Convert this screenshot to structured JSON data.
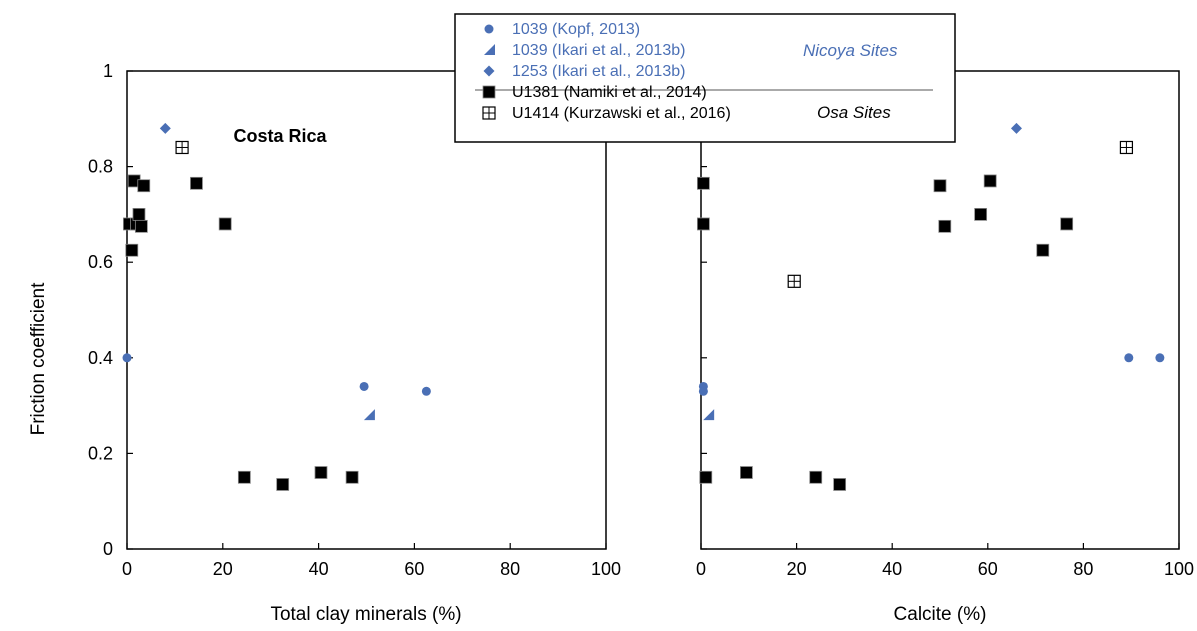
{
  "colors": {
    "nicoya": "#4a6fb5",
    "osa": "#000000",
    "axis": "#000000"
  },
  "shared": {
    "ylabel": "Friction coefficient"
  },
  "chart_data": [
    {
      "type": "scatter",
      "title": "Costa Rica",
      "xlabel": "Total clay minerals (%)",
      "ylabel": "Friction coefficient",
      "xlim": [
        0,
        100
      ],
      "ylim": [
        0,
        1
      ],
      "xticks": [
        "0",
        "20",
        "40",
        "60",
        "80",
        "100"
      ],
      "yticks": [
        "0",
        "0.2",
        "0.4",
        "0.6",
        "0.8",
        "1"
      ],
      "series": [
        {
          "name": "1039 (Kopf, 2013)",
          "marker": "circle",
          "color": "#4a6fb5",
          "points": [
            [
              0,
              0.4
            ],
            [
              49.5,
              0.34
            ],
            [
              62.5,
              0.33
            ]
          ]
        },
        {
          "name": "1039 (Ikari et al., 2013b)",
          "marker": "triangle",
          "color": "#4a6fb5",
          "points": [
            [
              50.5,
              0.28
            ]
          ]
        },
        {
          "name": "1253 (Ikari et al., 2013b)",
          "marker": "diamond",
          "color": "#4a6fb5",
          "points": [
            [
              8,
              0.88
            ]
          ]
        },
        {
          "name": "U1381 (Namiki et al., 2014)",
          "marker": "square",
          "color": "#000000",
          "points": [
            [
              0.5,
              0.68
            ],
            [
              1,
              0.625
            ],
            [
              1.5,
              0.77
            ],
            [
              2,
              0.68
            ],
            [
              2.5,
              0.7
            ],
            [
              3,
              0.675
            ],
            [
              3.5,
              0.76
            ],
            [
              14.5,
              0.765
            ],
            [
              20.5,
              0.68
            ],
            [
              24.5,
              0.15
            ],
            [
              32.5,
              0.135
            ],
            [
              40.5,
              0.16
            ],
            [
              47,
              0.15
            ]
          ]
        },
        {
          "name": "U1414 (Kurzawski et al., 2016)",
          "marker": "boxcross",
          "color": "#000000",
          "points": [
            [
              11.5,
              0.84
            ]
          ]
        }
      ]
    },
    {
      "type": "scatter",
      "title": "",
      "xlabel": "Calcite (%)",
      "ylabel": "",
      "xlim": [
        0,
        100
      ],
      "ylim": [
        0,
        1
      ],
      "xticks": [
        "0",
        "20",
        "40",
        "60",
        "80",
        "100"
      ],
      "yticks": [
        "0",
        "0.2",
        "0.4",
        "0.6",
        "0.8",
        "1"
      ],
      "series": [
        {
          "name": "1039 (Kopf, 2013)",
          "marker": "circle",
          "color": "#4a6fb5",
          "points": [
            [
              0.5,
              0.34
            ],
            [
              0.5,
              0.33
            ],
            [
              89.5,
              0.4
            ],
            [
              96,
              0.4
            ]
          ]
        },
        {
          "name": "1039 (Ikari et al., 2013b)",
          "marker": "triangle",
          "color": "#4a6fb5",
          "points": [
            [
              1.5,
              0.28
            ]
          ]
        },
        {
          "name": "1253 (Ikari et al., 2013b)",
          "marker": "diamond",
          "color": "#4a6fb5",
          "points": [
            [
              66,
              0.88
            ]
          ]
        },
        {
          "name": "U1381 (Namiki et al., 2014)",
          "marker": "square",
          "color": "#000000",
          "points": [
            [
              0.5,
              0.765
            ],
            [
              0.5,
              0.68
            ],
            [
              1,
              0.15
            ],
            [
              9.5,
              0.16
            ],
            [
              24,
              0.15
            ],
            [
              29,
              0.135
            ],
            [
              50,
              0.76
            ],
            [
              51,
              0.675
            ],
            [
              58.5,
              0.7
            ],
            [
              60.5,
              0.77
            ],
            [
              71.5,
              0.625
            ],
            [
              76.5,
              0.68
            ]
          ]
        },
        {
          "name": "U1414 (Kurzawski et al., 2016)",
          "marker": "boxcross",
          "color": "#000000",
          "points": [
            [
              19.5,
              0.56
            ],
            [
              89,
              0.84
            ]
          ]
        }
      ]
    }
  ],
  "legend": {
    "entries": [
      {
        "label": "1039 (Kopf, 2013)",
        "marker": "circle",
        "color": "#4a6fb5"
      },
      {
        "label": "1039 (Ikari et al., 2013b)",
        "marker": "triangle",
        "color": "#4a6fb5"
      },
      {
        "label": "1253 (Ikari et al., 2013b)",
        "marker": "diamond",
        "color": "#4a6fb5"
      },
      {
        "label": "U1381 (Namiki et al., 2014)",
        "marker": "square",
        "color": "#000000"
      },
      {
        "label": "U1414 (Kurzawski et al., 2016)",
        "marker": "boxcross",
        "color": "#000000"
      }
    ],
    "groups": [
      {
        "label": "Nicoya Sites",
        "color": "#4a6fb5"
      },
      {
        "label": "Osa Sites",
        "color": "#000000"
      }
    ]
  }
}
